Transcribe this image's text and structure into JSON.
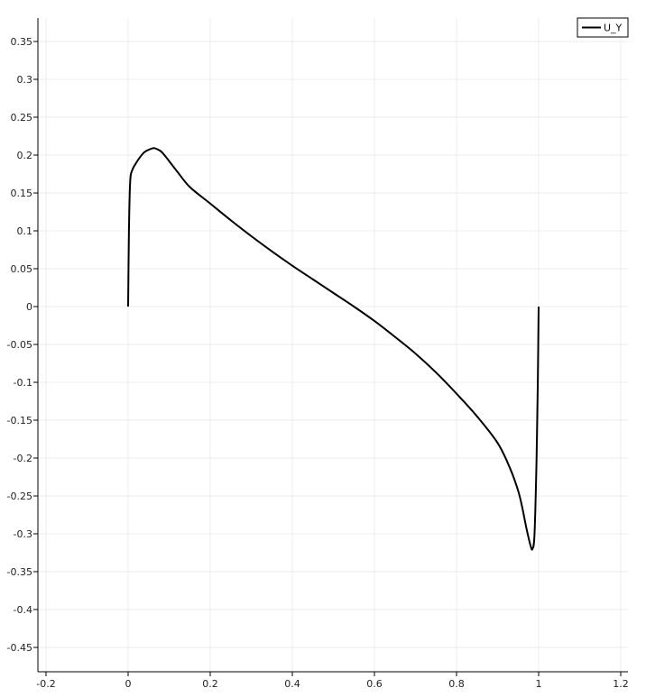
{
  "chart_data": {
    "type": "line",
    "title": "",
    "xlabel": "",
    "ylabel": "",
    "xlim": [
      -0.2,
      1.2
    ],
    "ylim": [
      -0.45,
      0.35
    ],
    "x_ticks": [
      "-0.2",
      "0",
      "0.2",
      "0.4",
      "0.6",
      "0.8",
      "1",
      "1.2"
    ],
    "y_ticks": [
      "0.35",
      "0.3",
      "0.25",
      "0.2",
      "0.15",
      "0.1",
      "0.05",
      "0",
      "-0.05",
      "-0.1",
      "-0.15",
      "-0.2",
      "-0.25",
      "-0.3",
      "-0.35",
      "-0.4",
      "-0.45"
    ],
    "grid": true,
    "legend": {
      "position": "top-right"
    },
    "series": [
      {
        "name": "U_Y",
        "color": "#000000",
        "x": [
          0.0,
          0.002,
          0.005,
          0.01,
          0.02,
          0.03,
          0.04,
          0.05,
          0.06,
          0.065,
          0.07,
          0.08,
          0.09,
          0.1,
          0.12,
          0.15,
          0.2,
          0.25,
          0.3,
          0.35,
          0.4,
          0.45,
          0.5,
          0.55,
          0.6,
          0.65,
          0.7,
          0.75,
          0.8,
          0.85,
          0.9,
          0.93,
          0.95,
          0.96,
          0.97,
          0.98,
          0.985,
          0.99,
          0.995,
          0.998,
          1.0
        ],
        "y": [
          0.0,
          0.1,
          0.165,
          0.18,
          0.19,
          0.198,
          0.204,
          0.207,
          0.209,
          0.209,
          0.208,
          0.205,
          0.199,
          0.192,
          0.178,
          0.158,
          0.136,
          0.114,
          0.093,
          0.073,
          0.054,
          0.036,
          0.018,
          0.0,
          -0.019,
          -0.04,
          -0.062,
          -0.087,
          -0.115,
          -0.145,
          -0.18,
          -0.213,
          -0.243,
          -0.265,
          -0.292,
          -0.315,
          -0.32,
          -0.3,
          -0.2,
          -0.1,
          0.0
        ]
      }
    ]
  }
}
